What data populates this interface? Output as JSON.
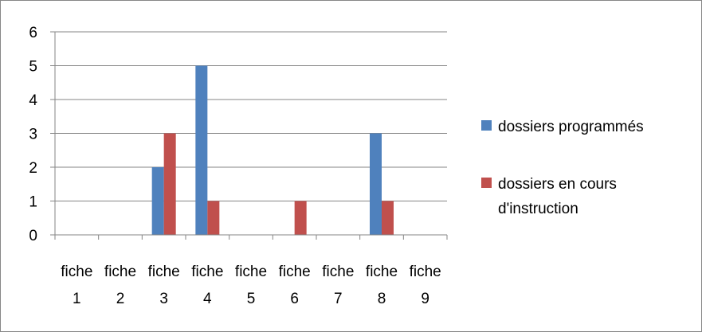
{
  "chart_data": {
    "type": "bar",
    "categories": [
      [
        "fiche",
        "1"
      ],
      [
        "fiche",
        "2"
      ],
      [
        "fiche",
        "3"
      ],
      [
        "fiche",
        "4"
      ],
      [
        "fiche",
        "5"
      ],
      [
        "fiche",
        "6"
      ],
      [
        "fiche",
        "7"
      ],
      [
        "fiche",
        "8"
      ],
      [
        "fiche",
        "9"
      ]
    ],
    "series": [
      {
        "name": "dossiers programmés",
        "color": "#4f81bd",
        "values": [
          0,
          0,
          2,
          5,
          0,
          0,
          0,
          3,
          0
        ]
      },
      {
        "name_lines": [
          "dossiers en cours",
          "d'instruction"
        ],
        "color": "#c0504d",
        "values": [
          0,
          0,
          3,
          1,
          0,
          1,
          0,
          1,
          0
        ]
      }
    ],
    "ylim": [
      0,
      6
    ],
    "yticks": [
      "0",
      "1",
      "2",
      "3",
      "4",
      "5",
      "6"
    ],
    "grid": true,
    "legend_position": "right"
  }
}
